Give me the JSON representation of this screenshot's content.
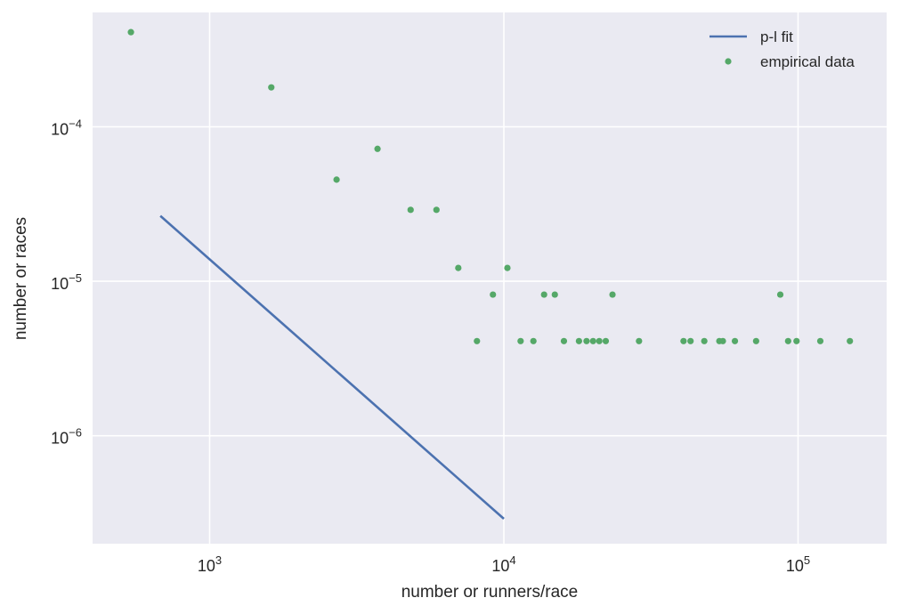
{
  "chart_data": {
    "type": "scatter",
    "title": "",
    "xlabel": "number or runners/race",
    "ylabel": "number or races",
    "xscale": "log",
    "yscale": "log",
    "xlim": [
      400,
      200000
    ],
    "ylim": [
      2e-07,
      0.00055
    ],
    "grid": true,
    "legend_position": "upper-right",
    "x_ticks": [
      {
        "value": 1000,
        "base": "10",
        "exp": "3"
      },
      {
        "value": 10000,
        "base": "10",
        "exp": "4"
      },
      {
        "value": 100000,
        "base": "10",
        "exp": "5"
      }
    ],
    "y_ticks": [
      {
        "value": 1e-06,
        "base": "10",
        "exp": "−6"
      },
      {
        "value": 1e-05,
        "base": "10",
        "exp": "−5"
      },
      {
        "value": 0.0001,
        "base": "10",
        "exp": "−4"
      }
    ],
    "series": [
      {
        "name": "p-l fit",
        "kind": "line",
        "color": "#4c72b0",
        "points": [
          [
            680,
            2.65e-05
          ],
          [
            10000,
            2.9e-07
          ]
        ]
      },
      {
        "name": "empirical data",
        "kind": "scatter",
        "color": "#55a868",
        "points": [
          [
            540,
            0.00041
          ],
          [
            1620,
            0.00018
          ],
          [
            2700,
            4.55e-05
          ],
          [
            3720,
            7.2e-05
          ],
          [
            4820,
            2.9e-05
          ],
          [
            5900,
            2.9e-05
          ],
          [
            7000,
            1.22e-05
          ],
          [
            8100,
            4.1e-06
          ],
          [
            9180,
            8.2e-06
          ],
          [
            10280,
            1.22e-05
          ],
          [
            11400,
            4.1e-06
          ],
          [
            12600,
            4.1e-06
          ],
          [
            13700,
            8.2e-06
          ],
          [
            14900,
            8.2e-06
          ],
          [
            16000,
            4.1e-06
          ],
          [
            18000,
            4.1e-06
          ],
          [
            19100,
            4.1e-06
          ],
          [
            20100,
            4.1e-06
          ],
          [
            21100,
            4.1e-06
          ],
          [
            22200,
            4.1e-06
          ],
          [
            23400,
            8.2e-06
          ],
          [
            28800,
            4.1e-06
          ],
          [
            40800,
            4.1e-06
          ],
          [
            43100,
            4.1e-06
          ],
          [
            48000,
            4.1e-06
          ],
          [
            54000,
            4.1e-06
          ],
          [
            55500,
            4.1e-06
          ],
          [
            61000,
            4.1e-06
          ],
          [
            72000,
            4.1e-06
          ],
          [
            87000,
            8.2e-06
          ],
          [
            92500,
            4.1e-06
          ],
          [
            98800,
            4.1e-06
          ],
          [
            119000,
            4.1e-06
          ],
          [
            150000,
            4.1e-06
          ]
        ]
      }
    ]
  }
}
